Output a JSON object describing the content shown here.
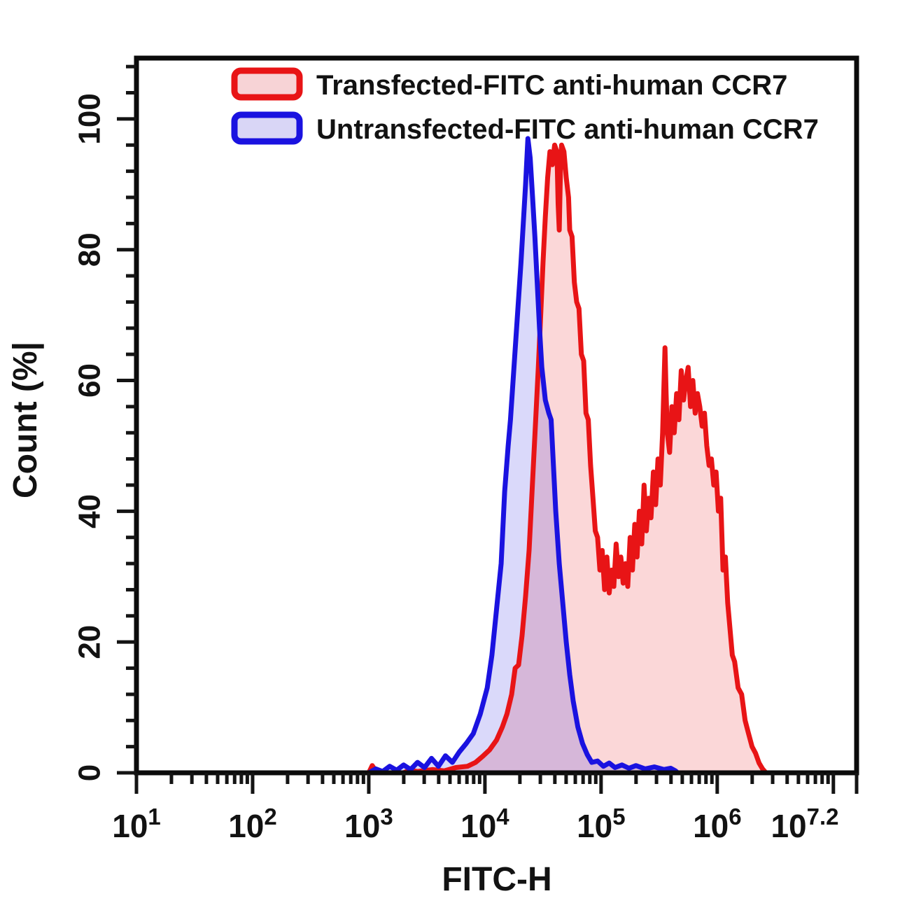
{
  "figure": {
    "background": "#ffffff"
  },
  "legend": {
    "items": [
      {
        "id": "transfected",
        "label": "Transfected-FITC anti-human CCR7",
        "stroke": "#e81416",
        "fill": "#f7d3d6"
      },
      {
        "id": "untransfected",
        "label": "Untransfected-FITC anti-human CCR7",
        "stroke": "#1a12e0",
        "fill": "#d9d6f6"
      }
    ]
  },
  "chart_data": {
    "type": "area",
    "subtype": "flow-cytometry-overlay-histogram",
    "title": "",
    "xlabel": "FITC-H",
    "ylabel": "Count (%|",
    "x_scale": "log10",
    "xlim_log10": [
      1,
      7.2
    ],
    "ylim": [
      0,
      100
    ],
    "grid": false,
    "legend_position": "top-inside",
    "tick_label_base": "10",
    "x_ticks": [
      {
        "log": 1,
        "exp": "1"
      },
      {
        "log": 2,
        "exp": "2"
      },
      {
        "log": 3,
        "exp": "3"
      },
      {
        "log": 4,
        "exp": "4"
      },
      {
        "log": 5,
        "exp": "5"
      },
      {
        "log": 6,
        "exp": "6"
      },
      {
        "log": 7,
        "exp": ""
      },
      {
        "log": 7.2,
        "exp": "7.2"
      }
    ],
    "y_ticks": [
      0,
      20,
      40,
      60,
      80,
      100
    ],
    "y_minor_step": 4,
    "series": [
      {
        "id": "transfected",
        "name": "Transfected-FITC anti-human CCR7",
        "stroke": "#e81416",
        "fill_rgba": "rgba(232,20,22,0.17)",
        "points": [
          [
            3.0,
            0
          ],
          [
            3.03,
            1.1
          ],
          [
            3.06,
            0.3
          ],
          [
            3.09,
            0
          ],
          [
            3.3,
            0
          ],
          [
            3.35,
            0.4
          ],
          [
            3.42,
            0.2
          ],
          [
            3.55,
            0.5
          ],
          [
            3.65,
            0.3
          ],
          [
            3.75,
            0.8
          ],
          [
            3.85,
            1.0
          ],
          [
            3.92,
            1.6
          ],
          [
            3.98,
            2.5
          ],
          [
            4.04,
            3.5
          ],
          [
            4.1,
            5
          ],
          [
            4.15,
            7
          ],
          [
            4.19,
            9
          ],
          [
            4.23,
            12
          ],
          [
            4.26,
            16
          ],
          [
            4.29,
            16.5
          ],
          [
            4.32,
            21
          ],
          [
            4.35,
            27
          ],
          [
            4.38,
            34
          ],
          [
            4.4,
            41
          ],
          [
            4.42,
            48
          ],
          [
            4.44,
            55
          ],
          [
            4.46,
            62
          ],
          [
            4.48,
            70
          ],
          [
            4.5,
            78
          ],
          [
            4.52,
            85
          ],
          [
            4.54,
            91
          ],
          [
            4.56,
            95
          ],
          [
            4.58,
            93
          ],
          [
            4.6,
            96
          ],
          [
            4.62,
            95
          ],
          [
            4.63,
            87
          ],
          [
            4.64,
            83
          ],
          [
            4.65,
            92
          ],
          [
            4.66,
            96
          ],
          [
            4.68,
            95
          ],
          [
            4.7,
            91
          ],
          [
            4.72,
            88
          ],
          [
            4.73,
            83
          ],
          [
            4.75,
            82
          ],
          [
            4.77,
            75
          ],
          [
            4.79,
            72
          ],
          [
            4.81,
            71
          ],
          [
            4.83,
            64
          ],
          [
            4.85,
            63
          ],
          [
            4.87,
            55
          ],
          [
            4.89,
            54
          ],
          [
            4.91,
            47
          ],
          [
            4.93,
            42
          ],
          [
            4.95,
            37
          ],
          [
            4.97,
            36
          ],
          [
            4.99,
            31
          ],
          [
            5.01,
            34
          ],
          [
            5.03,
            28
          ],
          [
            5.05,
            33
          ],
          [
            5.07,
            27.5
          ],
          [
            5.09,
            31
          ],
          [
            5.11,
            28.5
          ],
          [
            5.13,
            35
          ],
          [
            5.15,
            30
          ],
          [
            5.17,
            33
          ],
          [
            5.19,
            29
          ],
          [
            5.21,
            32
          ],
          [
            5.23,
            28.5
          ],
          [
            5.25,
            36
          ],
          [
            5.27,
            31
          ],
          [
            5.29,
            38
          ],
          [
            5.31,
            33
          ],
          [
            5.33,
            40
          ],
          [
            5.35,
            35
          ],
          [
            5.37,
            44
          ],
          [
            5.39,
            37
          ],
          [
            5.41,
            42
          ],
          [
            5.43,
            39
          ],
          [
            5.45,
            46
          ],
          [
            5.47,
            41
          ],
          [
            5.49,
            48
          ],
          [
            5.51,
            44
          ],
          [
            5.53,
            52
          ],
          [
            5.55,
            65
          ],
          [
            5.56,
            58
          ],
          [
            5.57,
            52
          ],
          [
            5.59,
            49
          ],
          [
            5.61,
            56
          ],
          [
            5.63,
            52
          ],
          [
            5.65,
            58
          ],
          [
            5.67,
            54
          ],
          [
            5.69,
            61.5
          ],
          [
            5.71,
            57
          ],
          [
            5.73,
            60
          ],
          [
            5.75,
            62
          ],
          [
            5.77,
            56
          ],
          [
            5.79,
            60
          ],
          [
            5.81,
            55
          ],
          [
            5.83,
            58
          ],
          [
            5.85,
            56
          ],
          [
            5.87,
            53
          ],
          [
            5.89,
            55
          ],
          [
            5.91,
            50
          ],
          [
            5.93,
            47
          ],
          [
            5.95,
            48
          ],
          [
            5.97,
            44
          ],
          [
            5.99,
            46
          ],
          [
            6.01,
            40
          ],
          [
            6.03,
            42
          ],
          [
            6.05,
            31
          ],
          [
            6.07,
            33
          ],
          [
            6.09,
            26
          ],
          [
            6.11,
            22
          ],
          [
            6.13,
            18
          ],
          [
            6.15,
            17
          ],
          [
            6.18,
            13
          ],
          [
            6.21,
            12
          ],
          [
            6.24,
            8
          ],
          [
            6.27,
            6
          ],
          [
            6.3,
            4
          ],
          [
            6.33,
            3
          ],
          [
            6.36,
            1.5
          ],
          [
            6.39,
            0.6
          ],
          [
            6.42,
            0
          ]
        ]
      },
      {
        "id": "untransfected",
        "name": "Untransfected-FITC anti-human CCR7",
        "stroke": "#1a12e0",
        "fill_rgba": "rgba(25,18,224,0.16)",
        "points": [
          [
            3.0,
            0
          ],
          [
            3.06,
            0.6
          ],
          [
            3.12,
            0.2
          ],
          [
            3.18,
            1.0
          ],
          [
            3.24,
            0.4
          ],
          [
            3.3,
            1.2
          ],
          [
            3.36,
            0.5
          ],
          [
            3.42,
            1.6
          ],
          [
            3.48,
            0.8
          ],
          [
            3.54,
            2.2
          ],
          [
            3.6,
            1.0
          ],
          [
            3.66,
            2.6
          ],
          [
            3.72,
            1.6
          ],
          [
            3.78,
            3.2
          ],
          [
            3.84,
            4.5
          ],
          [
            3.9,
            6
          ],
          [
            3.96,
            9
          ],
          [
            4.02,
            13
          ],
          [
            4.06,
            18
          ],
          [
            4.1,
            25
          ],
          [
            4.14,
            32
          ],
          [
            4.17,
            43
          ],
          [
            4.2,
            50
          ],
          [
            4.22,
            54
          ],
          [
            4.25,
            62
          ],
          [
            4.28,
            70
          ],
          [
            4.31,
            78
          ],
          [
            4.33,
            84
          ],
          [
            4.35,
            90
          ],
          [
            4.37,
            97
          ],
          [
            4.39,
            94
          ],
          [
            4.41,
            88
          ],
          [
            4.43,
            82
          ],
          [
            4.45,
            75
          ],
          [
            4.47,
            68
          ],
          [
            4.49,
            62
          ],
          [
            4.52,
            57
          ],
          [
            4.55,
            55
          ],
          [
            4.57,
            54
          ],
          [
            4.59,
            47
          ],
          [
            4.61,
            40
          ],
          [
            4.64,
            32
          ],
          [
            4.67,
            26
          ],
          [
            4.7,
            20
          ],
          [
            4.73,
            15
          ],
          [
            4.76,
            11
          ],
          [
            4.8,
            7
          ],
          [
            4.84,
            4.5
          ],
          [
            4.88,
            2.8
          ],
          [
            4.92,
            1.6
          ],
          [
            4.97,
            1.8
          ],
          [
            5.02,
            1.0
          ],
          [
            5.07,
            1.5
          ],
          [
            5.12,
            0.8
          ],
          [
            5.18,
            1.2
          ],
          [
            5.24,
            0.7
          ],
          [
            5.3,
            1.1
          ],
          [
            5.38,
            0.6
          ],
          [
            5.46,
            0.9
          ],
          [
            5.54,
            0.5
          ],
          [
            5.6,
            0.7
          ],
          [
            5.64,
            0.3
          ],
          [
            5.66,
            0
          ]
        ]
      }
    ]
  }
}
